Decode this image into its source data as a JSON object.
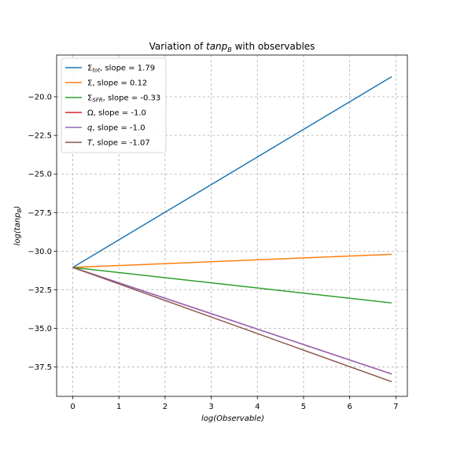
{
  "chart_data": {
    "type": "line",
    "title": "Variation of tanp_B with observables",
    "title_prefix": "Variation of ",
    "title_math": "tanp",
    "title_sub": "B",
    "title_suffix": " with observables",
    "xlabel": "log(Observable)",
    "ylabel": "log(tanp_B)",
    "xlim": [
      -0.35,
      7.25
    ],
    "ylim": [
      -39.4,
      -17.3
    ],
    "xticks": [
      0,
      1,
      2,
      3,
      4,
      5,
      6,
      7
    ],
    "xtick_labels": [
      "0",
      "1",
      "2",
      "3",
      "4",
      "5",
      "6",
      "7"
    ],
    "yticks": [
      -37.5,
      -35.0,
      -32.5,
      -30.0,
      -27.5,
      -25.0,
      -22.5,
      -20.0
    ],
    "ytick_labels": [
      "−37.5",
      "−35.0",
      "−32.5",
      "−30.0",
      "−27.5",
      "−25.0",
      "−22.5",
      "−20.0"
    ],
    "grid": true,
    "legend_position": "upper-left",
    "series": [
      {
        "name": "Σ_tot",
        "symbol": "Σ",
        "sub": "tot",
        "slope_text": ",  slope = 1.79",
        "color": "#1f77b4",
        "x": [
          0,
          6.91
        ],
        "y": [
          -31.05,
          -18.7
        ]
      },
      {
        "name": "Σ",
        "symbol": "Σ",
        "sub": "",
        "slope_text": ",  slope = 0.12",
        "color": "#ff7f0e",
        "x": [
          0,
          6.91
        ],
        "y": [
          -31.05,
          -30.2
        ]
      },
      {
        "name": "Σ_SFR",
        "symbol": "Σ",
        "sub": "SFR",
        "slope_text": ",  slope = -0.33",
        "color": "#2ca02c",
        "x": [
          0,
          6.91
        ],
        "y": [
          -31.05,
          -33.35
        ]
      },
      {
        "name": "Ω",
        "symbol": "Ω",
        "sub": "",
        "slope_text": ",  slope = -1.0",
        "color": "#d62728",
        "x": [
          0,
          6.91
        ],
        "y": [
          -31.05,
          -37.95
        ]
      },
      {
        "name": "q",
        "symbol": "q",
        "sub": "",
        "slope_text": ",  slope = -1.0",
        "color": "#9467bd",
        "x": [
          0,
          6.91
        ],
        "y": [
          -31.05,
          -37.95
        ]
      },
      {
        "name": "T",
        "symbol": "T",
        "sub": "",
        "slope_text": ",  slope = -1.07",
        "color": "#8c564b",
        "x": [
          0,
          6.91
        ],
        "y": [
          -31.05,
          -38.45
        ]
      }
    ]
  }
}
